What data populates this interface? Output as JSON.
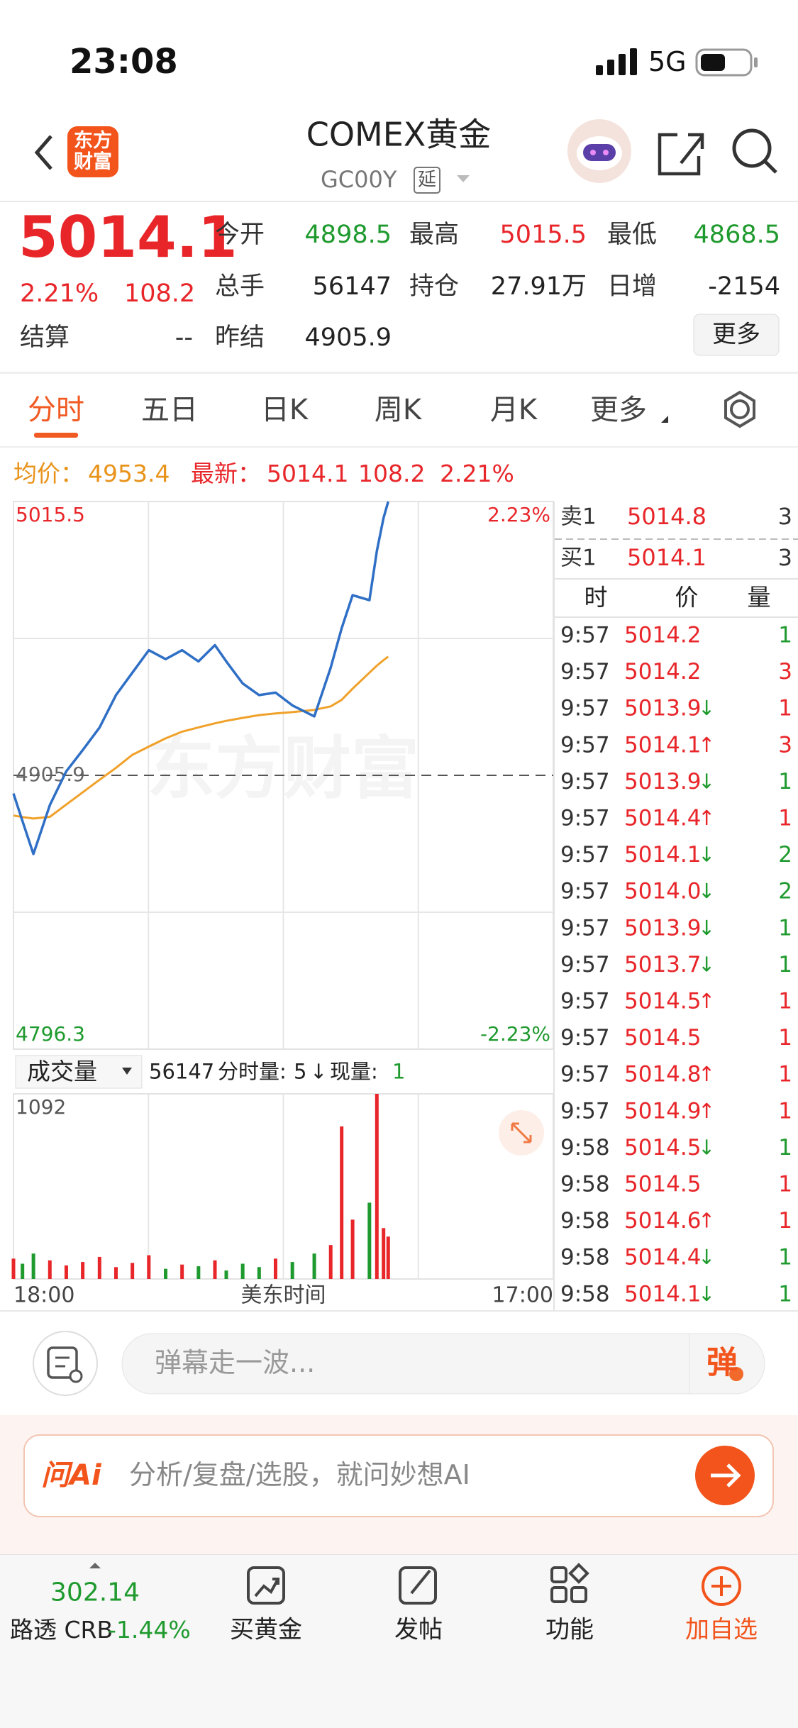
{
  "status_bar": {
    "time": "23:08",
    "network": "5G"
  },
  "nav": {
    "logo": "东方财富",
    "title": "COMEX黄金",
    "code": "GC00Y",
    "delay_tag": "延"
  },
  "quote": {
    "price": "5014.1",
    "change_pct": "2.21%",
    "change": "108.2",
    "settle_label": "结算",
    "settle": "--",
    "fields": [
      {
        "label": "今开",
        "value": "4898.5",
        "color": "#1f9a2e"
      },
      {
        "label": "最高",
        "value": "5015.5",
        "color": "#e8262a"
      },
      {
        "label": "最低",
        "value": "4868.5",
        "color": "#1f9a2e"
      },
      {
        "label": "总手",
        "value": "56147",
        "color": "#222222"
      },
      {
        "label": "持仓",
        "value": "27.91万",
        "color": "#222222"
      },
      {
        "label": "日增",
        "value": "-2154",
        "color": "#222222"
      },
      {
        "label": "昨结",
        "value": "4905.9",
        "color": "#222222"
      }
    ],
    "more_button": "更多"
  },
  "tabs": [
    "分时",
    "五日",
    "日K",
    "周K",
    "月K",
    "更多"
  ],
  "info_line": {
    "avg_label": "均价：",
    "avg": "4953.4",
    "last_label": "最新：",
    "last": "5014.1",
    "change": "108.2",
    "change_pct": "2.21%"
  },
  "price_chart": {
    "type": "line",
    "watermark": "东方财富",
    "x": [
      0,
      23,
      51,
      93,
      135,
      177,
      220,
      262,
      304,
      346,
      389,
      431,
      473,
      515,
      544,
      586,
      628,
      670,
      713,
      769,
      811,
      839,
      867,
      910,
      929,
      946,
      958
    ],
    "xlim": [
      0,
      1380
    ],
    "xticks": [
      {
        "value": 0,
        "label": "18:00"
      },
      {
        "value": 1380,
        "label": "17:00"
      }
    ],
    "x_label": "美东时间",
    "ylim": [
      4796.3,
      5015.5
    ],
    "yticks": [
      4796.3,
      4905.9,
      5015.5
    ],
    "pct_labels": [
      "2.23%",
      "-2.23%"
    ],
    "series": [
      {
        "color": "#2f6fc6",
        "values": [
          4898.6,
          4887.6,
          4874.4,
          4894.0,
          4907.5,
          4916.0,
          4925.0,
          4938.0,
          4947.0,
          4956.0,
          4952.4,
          4956.0,
          4951.5,
          4958.0,
          4951.5,
          4942.7,
          4938.0,
          4939.0,
          4933.9,
          4929.5,
          4949.0,
          4964.8,
          4978.0,
          4976.0,
          4995.7,
          5008.9,
          5015.5
        ]
      },
      {
        "color": "#f0a12a",
        "values": [
          4889.8,
          4889.2,
          4888.6,
          4889.3,
          4894.2,
          4899.1,
          4904.1,
          4908.9,
          4914.1,
          4917.4,
          4920.7,
          4923.4,
          4925.1,
          4926.7,
          4927.7,
          4928.9,
          4930.0,
          4930.7,
          4931.2,
          4932.1,
          4933.5,
          4936.1,
          4940.6,
          4947.0,
          4949.8,
          4952.0,
          4953.4
        ]
      }
    ]
  },
  "volume_chart": {
    "type": "bar",
    "selector": "成交量",
    "total": "56147",
    "interval_label": "分时量:",
    "interval": "5",
    "interval_arrow": "↓",
    "current_label": "现量:",
    "current": "1",
    "ylim": [
      0,
      1092
    ],
    "yticks": [
      1092
    ],
    "values": [
      120,
      90,
      150,
      110,
      80,
      100,
      130,
      70,
      95,
      140,
      60,
      85,
      75,
      110,
      50,
      90,
      70,
      120,
      100,
      150,
      200,
      900,
      350,
      450,
      1092,
      300,
      250
    ],
    "up_color": "#e8262a",
    "down_color": "#1f9a2e"
  },
  "order_book": {
    "ask": {
      "label": "卖1",
      "price": "5014.8",
      "qty": "3"
    },
    "bid": {
      "label": "买1",
      "price": "5014.1",
      "qty": "3"
    },
    "headers": [
      "时",
      "价",
      "量"
    ],
    "trades": [
      {
        "time": "9:57",
        "price": "5014.2",
        "qty": "1",
        "qty_color": "#1f9a2e"
      },
      {
        "time": "9:57",
        "price": "5014.2",
        "qty": "3",
        "qty_color": "#e8262a"
      },
      {
        "time": "9:57",
        "price": "5013.9",
        "arrow": "↓",
        "arrow_color": "#1f9a2e",
        "qty": "1",
        "qty_color": "#e8262a"
      },
      {
        "time": "9:57",
        "price": "5014.1",
        "arrow": "↑",
        "arrow_color": "#e8262a",
        "qty": "3",
        "qty_color": "#e8262a"
      },
      {
        "time": "9:57",
        "price": "5013.9",
        "arrow": "↓",
        "arrow_color": "#1f9a2e",
        "qty": "1",
        "qty_color": "#1f9a2e"
      },
      {
        "time": "9:57",
        "price": "5014.4",
        "arrow": "↑",
        "arrow_color": "#e8262a",
        "qty": "1",
        "qty_color": "#e8262a"
      },
      {
        "time": "9:57",
        "price": "5014.1",
        "arrow": "↓",
        "arrow_color": "#1f9a2e",
        "qty": "2",
        "qty_color": "#1f9a2e"
      },
      {
        "time": "9:57",
        "price": "5014.0",
        "arrow": "↓",
        "arrow_color": "#1f9a2e",
        "qty": "2",
        "qty_color": "#1f9a2e"
      },
      {
        "time": "9:57",
        "price": "5013.9",
        "arrow": "↓",
        "arrow_color": "#1f9a2e",
        "qty": "1",
        "qty_color": "#1f9a2e"
      },
      {
        "time": "9:57",
        "price": "5013.7",
        "arrow": "↓",
        "arrow_color": "#1f9a2e",
        "qty": "1",
        "qty_color": "#1f9a2e"
      },
      {
        "time": "9:57",
        "price": "5014.5",
        "arrow": "↑",
        "arrow_color": "#e8262a",
        "qty": "1",
        "qty_color": "#e8262a"
      },
      {
        "time": "9:57",
        "price": "5014.5",
        "qty": "1",
        "qty_color": "#e8262a"
      },
      {
        "time": "9:57",
        "price": "5014.8",
        "arrow": "↑",
        "arrow_color": "#e8262a",
        "qty": "1",
        "qty_color": "#e8262a"
      },
      {
        "time": "9:57",
        "price": "5014.9",
        "arrow": "↑",
        "arrow_color": "#e8262a",
        "qty": "1",
        "qty_color": "#e8262a"
      },
      {
        "time": "9:58",
        "price": "5014.5",
        "arrow": "↓",
        "arrow_color": "#1f9a2e",
        "qty": "1",
        "qty_color": "#1f9a2e"
      },
      {
        "time": "9:58",
        "price": "5014.5",
        "qty": "1",
        "qty_color": "#e8262a"
      },
      {
        "time": "9:58",
        "price": "5014.6",
        "arrow": "↑",
        "arrow_color": "#e8262a",
        "qty": "1",
        "qty_color": "#e8262a"
      },
      {
        "time": "9:58",
        "price": "5014.4",
        "arrow": "↓",
        "arrow_color": "#1f9a2e",
        "qty": "1",
        "qty_color": "#1f9a2e"
      },
      {
        "time": "9:58",
        "price": "5014.1",
        "arrow": "↓",
        "arrow_color": "#1f9a2e",
        "qty": "1",
        "qty_color": "#1f9a2e"
      }
    ]
  },
  "comment_bar": {
    "placeholder": "弹幕走一波...",
    "button": "弹"
  },
  "ai_bar": {
    "logo": "问Ai",
    "placeholder": "分析/复盘/选股，就问妙想AI"
  },
  "tab_bar": {
    "index_value": "302.14",
    "index_name": "路透 CRB",
    "index_change": "-1.44%",
    "items": [
      "买黄金",
      "发帖",
      "功能",
      "加自选"
    ]
  }
}
